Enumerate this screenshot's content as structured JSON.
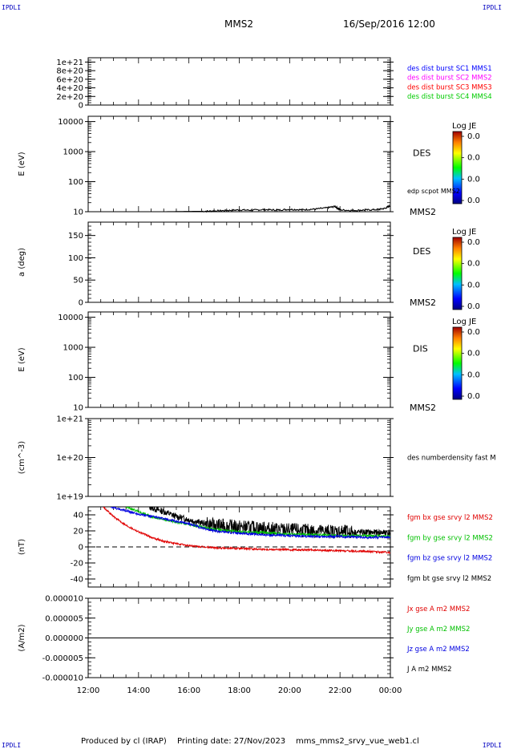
{
  "header": {
    "corner_tl": "IPDLI",
    "corner_tr": "IPDLI",
    "corner_bl": "IPDLI",
    "corner_br": "IPDLI",
    "spacecraft": "MMS2",
    "datetime": "16/Sep/2016 12:00"
  },
  "footer": {
    "producer": "Produced by cl (IRAP)",
    "printing_date": "Printing date: 27/Nov/2023",
    "script": "mms_mms2_srvy_vue_web1.cl"
  },
  "colors": {
    "mms1": "#0000ff",
    "mms2": "#ff00ff",
    "mms3": "#ff0000",
    "mms4": "#00cc00",
    "bx": "#e00000",
    "by": "#00c000",
    "bz": "#0000e0",
    "bt": "#000000"
  },
  "chart_data": [
    {
      "type": "line",
      "panel": "des-dist-burst",
      "ylabel": "",
      "ylim": [
        0,
        1.1e+21
      ],
      "ytick_labels": [
        "1e+21",
        "8e+20",
        "6e+20",
        "4e+20",
        "2e+20",
        "0"
      ],
      "ytick_values": [
        1e+21,
        8e+20,
        6e+20,
        4e+20,
        2e+20,
        0
      ],
      "zero_line_dashed": true,
      "legend": [
        {
          "name": "des dist burst SC1 MMS1",
          "color": "#0000ff"
        },
        {
          "name": "des dist burst SC2 MMS2",
          "color": "#ff00ff"
        },
        {
          "name": "des dist burst SC3 MMS3",
          "color": "#ff0000"
        },
        {
          "name": "des dist burst SC4 MMS4",
          "color": "#00cc00"
        }
      ],
      "series": []
    },
    {
      "type": "heatmap",
      "panel": "des-energy",
      "ylabel": "E (eV)",
      "yscale": "log",
      "ylim": [
        10,
        15000
      ],
      "ytick_labels": [
        "10000",
        "1000",
        "100",
        "10"
      ],
      "ytick_values": [
        10000,
        1000,
        100,
        10
      ],
      "instrument": "DES",
      "spacecraft": "MMS2",
      "colorbar": {
        "title": "Log JE",
        "labels": [
          "0.0",
          "0.0",
          "0.0",
          "0.0"
        ]
      },
      "overlay": {
        "name": "edp scpot MMS2",
        "color": "#000000",
        "x": [
          12.0,
          15.0,
          16.5,
          17.0,
          17.5,
          18.0,
          18.5,
          19.0,
          19.5,
          20.0,
          20.5,
          21.0,
          21.5,
          21.8,
          22.0,
          22.5,
          23.0,
          23.5,
          23.8,
          24.0
        ],
        "y": [
          10,
          10,
          10.3,
          10.6,
          11,
          11.5,
          11.2,
          11.8,
          11.3,
          12,
          11.6,
          12.2,
          13.5,
          15,
          11.5,
          11,
          11.4,
          11.8,
          13,
          16
        ]
      }
    },
    {
      "type": "heatmap",
      "panel": "des-pitch",
      "ylabel": "a (deg)",
      "ylim": [
        0,
        180
      ],
      "ytick_labels": [
        "150",
        "100",
        "50",
        "0"
      ],
      "ytick_values": [
        150,
        100,
        50,
        0
      ],
      "instrument": "DES",
      "spacecraft": "MMS2",
      "colorbar": {
        "title": "Log JE",
        "labels": [
          "0.0",
          "0.0",
          "0.0",
          "0.0"
        ]
      }
    },
    {
      "type": "heatmap",
      "panel": "dis-energy",
      "ylabel": "E (eV)",
      "yscale": "log",
      "ylim": [
        10,
        15000
      ],
      "ytick_labels": [
        "10000",
        "1000",
        "100",
        "10"
      ],
      "ytick_values": [
        10000,
        1000,
        100,
        10
      ],
      "instrument": "DIS",
      "spacecraft": "MMS2",
      "colorbar": {
        "title": "Log JE",
        "labels": [
          "0.0",
          "0.0",
          "0.0",
          "0.0"
        ]
      }
    },
    {
      "type": "line",
      "panel": "des-density",
      "ylabel": "(cm^-3)",
      "yscale": "log",
      "ylim": [
        1e+19,
        1e+21
      ],
      "ytick_labels": [
        "1e+21",
        "1e+20",
        "1e+19"
      ],
      "ytick_values": [
        1e+21,
        1e+20,
        1e+19
      ],
      "legend": [
        {
          "name": "des numberdensity fast M",
          "color": "#000000"
        }
      ],
      "series": []
    },
    {
      "type": "line",
      "panel": "fgm",
      "ylabel": "(nT)",
      "ylim": [
        -50,
        50
      ],
      "ytick_labels": [
        "40",
        "20",
        "0",
        "-20",
        "-40"
      ],
      "ytick_values": [
        40,
        20,
        0,
        -20,
        -40
      ],
      "zero_line_dashed": true,
      "legend": [
        {
          "name": "fgm bx gse srvy l2 MMS2",
          "color": "#e00000"
        },
        {
          "name": "fgm by gse srvy l2 MMS2",
          "color": "#00c000"
        },
        {
          "name": "fgm bz gse srvy l2 MMS2",
          "color": "#0000e0"
        },
        {
          "name": "fgm bt gse srvy l2 MMS2",
          "color": "#000000"
        }
      ],
      "series": [
        {
          "name": "fgm bt gse srvy l2 MMS2",
          "color": "#000000",
          "noise": 4,
          "x": [
            14.4,
            15.0,
            15.5,
            16.0,
            16.5,
            17.0,
            18.0,
            19.0,
            20.0,
            21.0,
            22.0,
            23.0,
            24.0
          ],
          "y": [
            50,
            44,
            38,
            34,
            30,
            27,
            25,
            23,
            21,
            20,
            19,
            18,
            18
          ]
        },
        {
          "name": "fgm by gse srvy l2 MMS2",
          "color": "#00c000",
          "noise": 1.5,
          "x": [
            13.5,
            14.0,
            14.5,
            15.0,
            15.5,
            16.0,
            16.5,
            17.0,
            18.0,
            19.0,
            20.0,
            21.0,
            22.0,
            23.0,
            24.0
          ],
          "y": [
            50,
            44,
            38,
            34,
            31,
            28,
            25,
            22,
            19,
            18,
            16,
            15,
            14,
            14,
            13
          ]
        },
        {
          "name": "fgm bz gse srvy l2 MMS2",
          "color": "#0000e0",
          "noise": 1.5,
          "x": [
            12.9,
            13.5,
            14.0,
            14.5,
            15.0,
            15.5,
            16.0,
            16.5,
            17.0,
            18.0,
            19.0,
            20.0,
            21.0,
            22.0,
            23.0,
            24.0
          ],
          "y": [
            50,
            45,
            41,
            38,
            35,
            32,
            29,
            24,
            20,
            17,
            15,
            14,
            13,
            13,
            12,
            12
          ]
        },
        {
          "name": "fgm bx gse srvy l2 MMS2",
          "color": "#e00000",
          "noise": 1.2,
          "x": [
            12.6,
            13.0,
            13.5,
            14.0,
            14.5,
            15.0,
            15.5,
            16.0,
            16.5,
            17.0,
            18.0,
            19.0,
            20.0,
            21.0,
            22.0,
            23.0,
            24.0
          ],
          "y": [
            50,
            38,
            27,
            19,
            12,
            7,
            4,
            1.5,
            0,
            -1,
            -2,
            -3,
            -3.5,
            -4,
            -5,
            -5.5,
            -7
          ]
        }
      ]
    },
    {
      "type": "line",
      "panel": "current-density",
      "ylabel": "(A/m2)",
      "ylim": [
        -1e-05,
        1e-05
      ],
      "ytick_labels": [
        "0.000010",
        "0.000005",
        "0.000000",
        "-0.000005",
        "-0.000010"
      ],
      "ytick_values": [
        1e-05,
        5e-06,
        0,
        -5e-06,
        -1e-05
      ],
      "legend": [
        {
          "name": "Jx gse A m2 MMS2",
          "color": "#e00000"
        },
        {
          "name": "Jy gse A m2 MMS2",
          "color": "#00c000"
        },
        {
          "name": "Jz gse A m2 MMS2",
          "color": "#0000e0"
        },
        {
          "name": "J A m2 MMS2",
          "color": "#000000"
        }
      ],
      "series": [
        {
          "name": "Jz gse A m2 MMS2",
          "color": "#0000e0",
          "x": [
            12.0,
            24.0
          ],
          "y": [
            0,
            0
          ]
        },
        {
          "name": "J A m2 MMS2",
          "color": "#000000",
          "x": [
            12.0,
            24.0
          ],
          "y": [
            0,
            0
          ]
        }
      ]
    }
  ],
  "x_axis": {
    "range": [
      12,
      24
    ],
    "tick_labels": [
      "12:00",
      "14:00",
      "16:00",
      "18:00",
      "20:00",
      "22:00",
      "00:00"
    ],
    "tick_values": [
      12,
      14,
      16,
      18,
      20,
      22,
      24
    ]
  }
}
